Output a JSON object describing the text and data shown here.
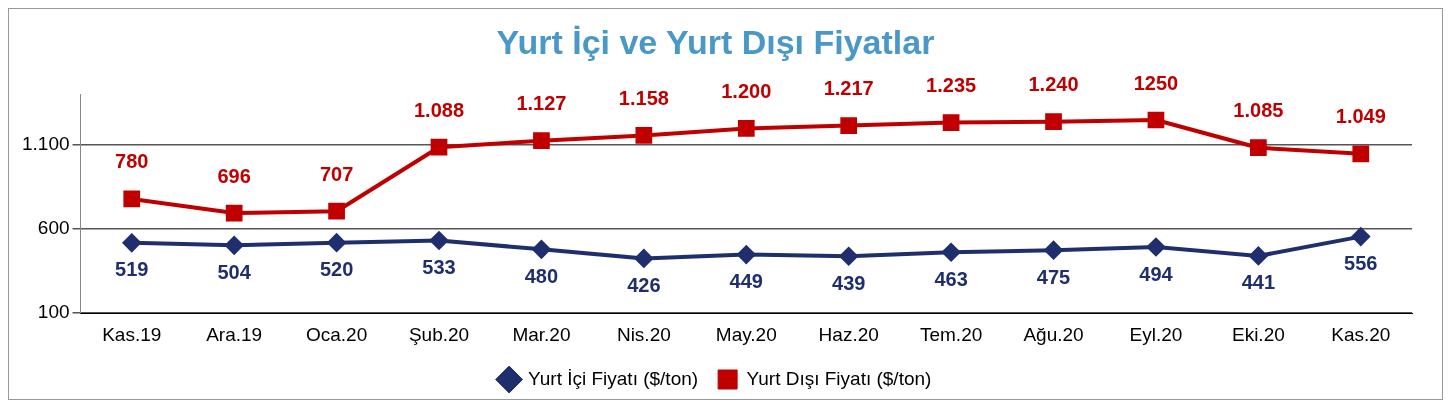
{
  "chart_data": {
    "type": "line",
    "title": "Yurt İçi ve Yurt Dışı Fiyatlar",
    "categories": [
      "Kas.19",
      "Ara.19",
      "Oca.20",
      "Şub.20",
      "Mar.20",
      "Nis.20",
      "May.20",
      "Haz.20",
      "Tem.20",
      "Ağu.20",
      "Eyl.20",
      "Eki.20",
      "Kas.20"
    ],
    "series": [
      {
        "name": "Yurt İçi Fiyatı ($/ton)",
        "color": "#1f2f6e",
        "marker": "diamond",
        "values": [
          519,
          504,
          520,
          533,
          480,
          426,
          449,
          439,
          463,
          475,
          494,
          441,
          556
        ],
        "value_labels": [
          "519",
          "504",
          "520",
          "533",
          "480",
          "426",
          "449",
          "439",
          "463",
          "475",
          "494",
          "441",
          "556"
        ]
      },
      {
        "name": "Yurt Dışı Fiyatı ($/ton)",
        "color": "#c00000",
        "marker": "square",
        "values": [
          780,
          696,
          707,
          1088,
          1127,
          1158,
          1200,
          1217,
          1235,
          1240,
          1250,
          1085,
          1049
        ],
        "value_labels": [
          "780",
          "696",
          "707",
          "1.088",
          "1.127",
          "1.158",
          "1.200",
          "1.217",
          "1.235",
          "1.240",
          "1250",
          "1.085",
          "1.049"
        ]
      }
    ],
    "ylim": [
      100,
      1400
    ],
    "yticks": [
      100,
      600,
      {
        "value": 1100,
        "label": "1.100"
      }
    ],
    "grid": "y",
    "legend": "bottom"
  }
}
